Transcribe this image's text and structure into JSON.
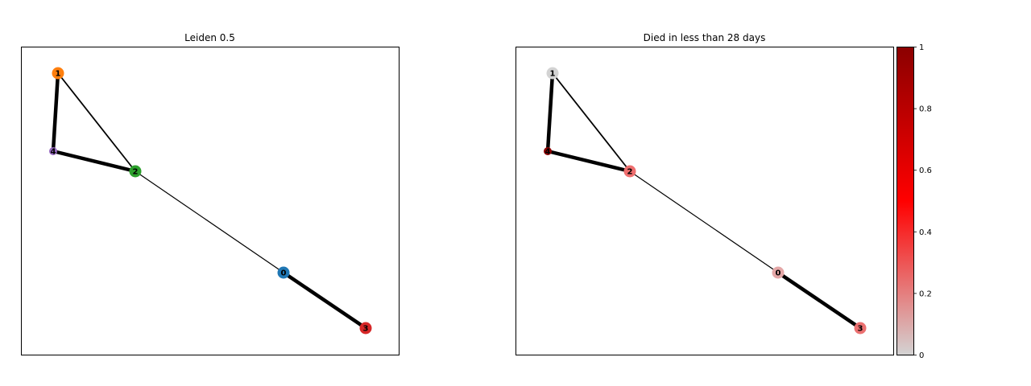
{
  "panels": [
    {
      "title": "Leiden 0.5",
      "nodes": [
        {
          "id": "0",
          "label": "0",
          "color": "#1f77b4",
          "size": "large"
        },
        {
          "id": "1",
          "label": "1",
          "color": "#ff7f0e",
          "size": "large"
        },
        {
          "id": "2",
          "label": "2",
          "color": "#2ca02c",
          "size": "large"
        },
        {
          "id": "3",
          "label": "3",
          "color": "#d62728",
          "size": "large"
        },
        {
          "id": "4",
          "label": "4",
          "color": "#9467bd",
          "size": "small"
        }
      ]
    },
    {
      "title": "Died in less than 28 days",
      "nodes": [
        {
          "id": "0",
          "label": "0",
          "value": 0.2,
          "color": "#e4a7a7",
          "size": "large"
        },
        {
          "id": "1",
          "label": "1",
          "value": 0.0,
          "color": "#d3d3d3",
          "size": "large"
        },
        {
          "id": "2",
          "label": "2",
          "value": 0.3,
          "color": "#ee6e6e",
          "size": "large"
        },
        {
          "id": "3",
          "label": "3",
          "value": 0.3,
          "color": "#eb7070",
          "size": "large"
        },
        {
          "id": "4",
          "label": "4",
          "value": 0.9,
          "color": "#8b0000",
          "size": "small"
        }
      ],
      "colorbar": {
        "min": 0,
        "max": 1,
        "ticks": [
          "0",
          "0.2",
          "0.4",
          "0.6",
          "0.8",
          "1"
        ],
        "colors": [
          "#d3d3d3",
          "#ff0000",
          "#8b0000"
        ]
      }
    }
  ],
  "edges": [
    {
      "source": "1",
      "target": "4",
      "weight": "heavy"
    },
    {
      "source": "4",
      "target": "2",
      "weight": "heavy"
    },
    {
      "source": "1",
      "target": "2",
      "weight": "medium"
    },
    {
      "source": "2",
      "target": "0",
      "weight": "light"
    },
    {
      "source": "0",
      "target": "3",
      "weight": "heavy"
    }
  ]
}
